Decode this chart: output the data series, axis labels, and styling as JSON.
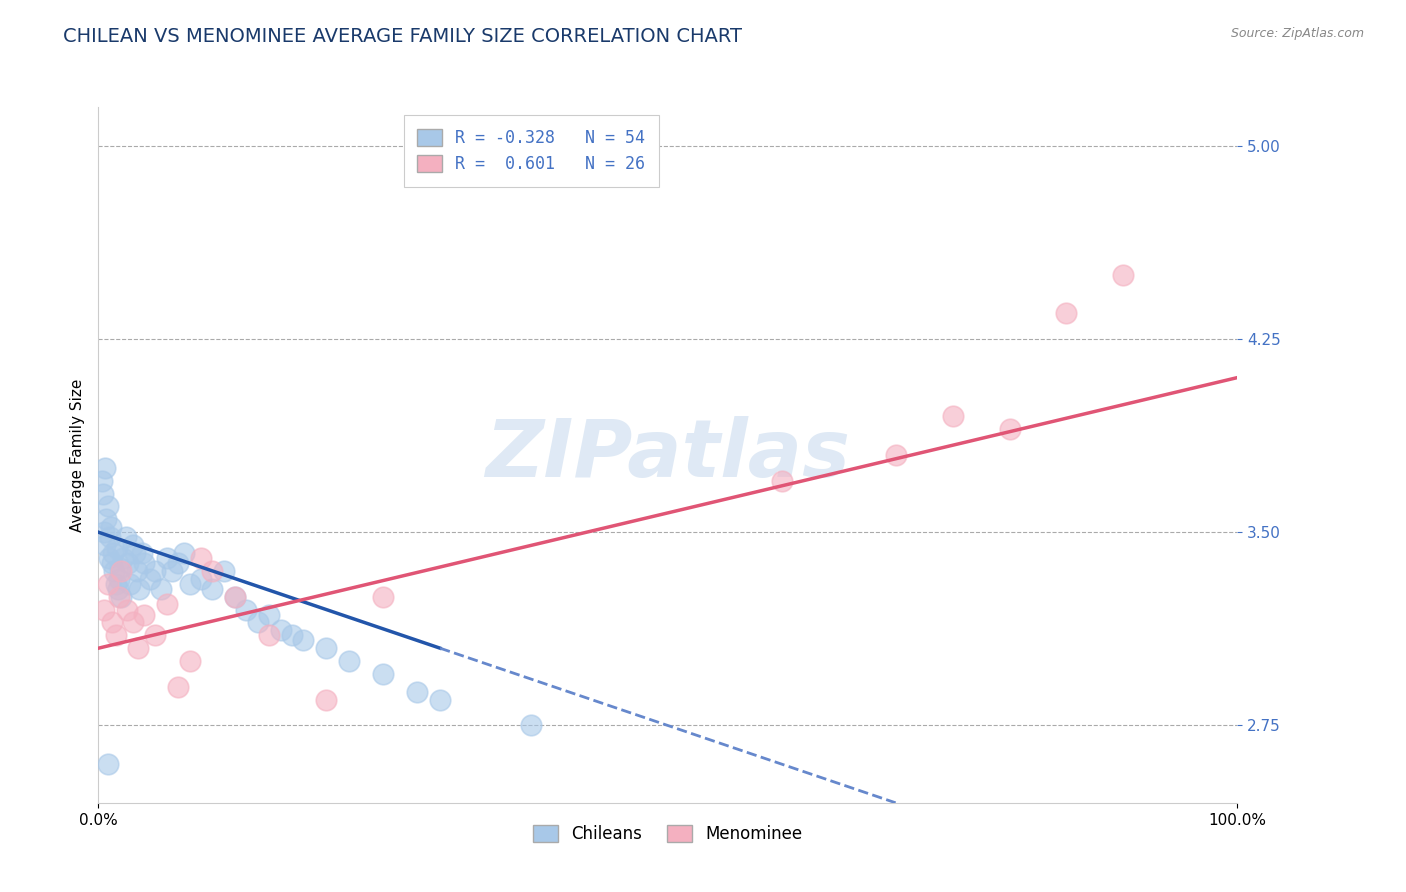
{
  "title": "CHILEAN VS MENOMINEE AVERAGE FAMILY SIZE CORRELATION CHART",
  "source_text": "Source: ZipAtlas.com",
  "ylabel": "Average Family Size",
  "watermark": "ZIPatlas",
  "xlim": [
    0,
    1.0
  ],
  "ylim": [
    2.45,
    5.15
  ],
  "xticks": [
    0.0,
    1.0
  ],
  "xticklabels": [
    "0.0%",
    "100.0%"
  ],
  "yticks": [
    2.75,
    3.5,
    4.25,
    5.0
  ],
  "ytick_color": "#4472c4",
  "chilean_color": "#a8c8e8",
  "menominee_color": "#f4b0c0",
  "chilean_line_color": "#2255aa",
  "menominee_line_color": "#e05575",
  "extrapolation_color": "#6688cc",
  "legend_chilean_label": "Chileans",
  "legend_menominee_label": "Menominee",
  "r_chilean": -0.328,
  "n_chilean": 54,
  "r_menominee": 0.601,
  "n_menominee": 26,
  "title_color": "#1a3a6b",
  "title_fontsize": 14,
  "axis_label_fontsize": 11,
  "tick_fontsize": 11,
  "background_color": "#ffffff",
  "grid_color": "#aaaaaa",
  "chilean_points": [
    [
      0.005,
      3.5
    ],
    [
      0.006,
      3.45
    ],
    [
      0.007,
      3.55
    ],
    [
      0.008,
      3.6
    ],
    [
      0.009,
      3.4
    ],
    [
      0.01,
      3.48
    ],
    [
      0.011,
      3.52
    ],
    [
      0.012,
      3.38
    ],
    [
      0.013,
      3.42
    ],
    [
      0.014,
      3.35
    ],
    [
      0.015,
      3.3
    ],
    [
      0.016,
      3.44
    ],
    [
      0.017,
      3.28
    ],
    [
      0.018,
      3.32
    ],
    [
      0.019,
      3.36
    ],
    [
      0.02,
      3.25
    ],
    [
      0.022,
      3.4
    ],
    [
      0.024,
      3.48
    ],
    [
      0.026,
      3.38
    ],
    [
      0.028,
      3.3
    ],
    [
      0.03,
      3.45
    ],
    [
      0.032,
      3.42
    ],
    [
      0.034,
      3.35
    ],
    [
      0.036,
      3.28
    ],
    [
      0.038,
      3.42
    ],
    [
      0.04,
      3.38
    ],
    [
      0.045,
      3.32
    ],
    [
      0.05,
      3.35
    ],
    [
      0.055,
      3.28
    ],
    [
      0.06,
      3.4
    ],
    [
      0.065,
      3.35
    ],
    [
      0.07,
      3.38
    ],
    [
      0.075,
      3.42
    ],
    [
      0.08,
      3.3
    ],
    [
      0.09,
      3.32
    ],
    [
      0.1,
      3.28
    ],
    [
      0.11,
      3.35
    ],
    [
      0.12,
      3.25
    ],
    [
      0.13,
      3.2
    ],
    [
      0.14,
      3.15
    ],
    [
      0.15,
      3.18
    ],
    [
      0.16,
      3.12
    ],
    [
      0.17,
      3.1
    ],
    [
      0.18,
      3.08
    ],
    [
      0.2,
      3.05
    ],
    [
      0.22,
      3.0
    ],
    [
      0.25,
      2.95
    ],
    [
      0.28,
      2.88
    ],
    [
      0.3,
      2.85
    ],
    [
      0.003,
      3.7
    ],
    [
      0.004,
      3.65
    ],
    [
      0.006,
      3.75
    ],
    [
      0.008,
      2.6
    ],
    [
      0.38,
      2.75
    ]
  ],
  "menominee_points": [
    [
      0.005,
      3.2
    ],
    [
      0.008,
      3.3
    ],
    [
      0.012,
      3.15
    ],
    [
      0.015,
      3.1
    ],
    [
      0.018,
      3.25
    ],
    [
      0.02,
      3.35
    ],
    [
      0.025,
      3.2
    ],
    [
      0.03,
      3.15
    ],
    [
      0.035,
      3.05
    ],
    [
      0.04,
      3.18
    ],
    [
      0.05,
      3.1
    ],
    [
      0.06,
      3.22
    ],
    [
      0.07,
      2.9
    ],
    [
      0.08,
      3.0
    ],
    [
      0.09,
      3.4
    ],
    [
      0.1,
      3.35
    ],
    [
      0.12,
      3.25
    ],
    [
      0.15,
      3.1
    ],
    [
      0.2,
      2.85
    ],
    [
      0.25,
      3.25
    ],
    [
      0.6,
      3.7
    ],
    [
      0.7,
      3.8
    ],
    [
      0.75,
      3.95
    ],
    [
      0.8,
      3.9
    ],
    [
      0.85,
      4.35
    ],
    [
      0.9,
      4.5
    ]
  ],
  "chilean_trendline": [
    [
      0.0,
      3.5
    ],
    [
      0.3,
      3.05
    ]
  ],
  "menominee_trendline": [
    [
      0.0,
      3.05
    ],
    [
      1.0,
      4.1
    ]
  ],
  "extrapolation_trendline": [
    [
      0.3,
      3.05
    ],
    [
      0.7,
      2.45
    ]
  ]
}
